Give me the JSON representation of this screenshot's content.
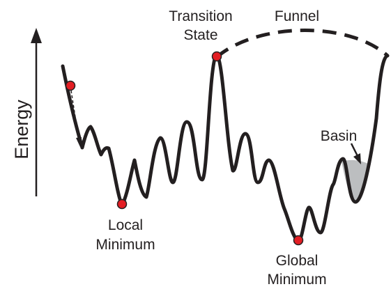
{
  "axis": {
    "label": "Energy"
  },
  "labels": {
    "transition_state_line1": "Transition",
    "transition_state_line2": "State",
    "funnel": "Funnel",
    "basin": "Basin",
    "local_minimum_line1": "Local",
    "local_minimum_line2": "Minimum",
    "global_minimum_line1": "Global",
    "global_minimum_line2": "Minimum"
  },
  "colors": {
    "curve": "#231f20",
    "marker": "#e31e24",
    "basin_fill": "#bcbec0"
  }
}
